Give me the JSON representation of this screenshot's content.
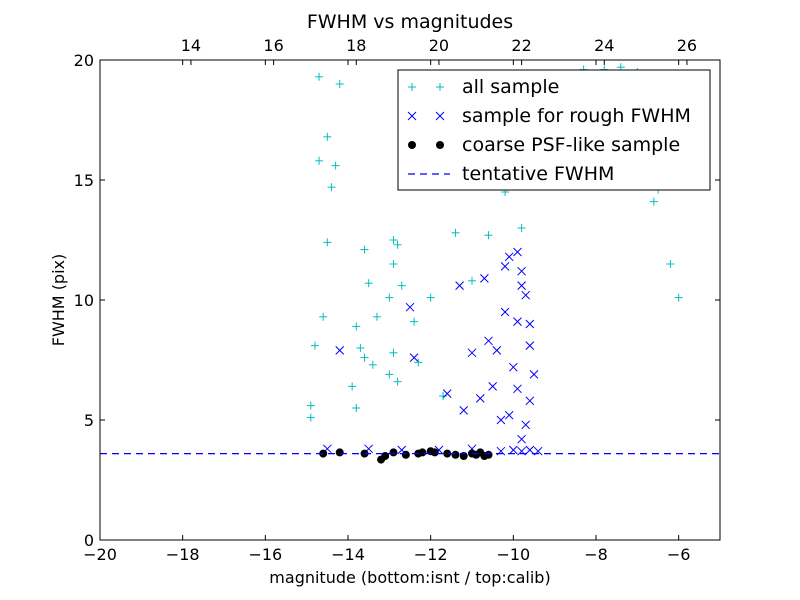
{
  "chart_data": {
    "type": "scatter",
    "title": "FWHM vs magnitudes",
    "xlabel": "magnitude (bottom:isnt / top:calib)",
    "ylabel": "FWHM (pix)",
    "xlim": [
      -20,
      -5
    ],
    "ylim": [
      0,
      20
    ],
    "x_ticks": [
      -20,
      -18,
      -16,
      -14,
      -12,
      -10,
      -8,
      -6
    ],
    "x_tick_labels": [
      "−20",
      "−18",
      "−16",
      "−14",
      "−12",
      "−10",
      "−8",
      "−6"
    ],
    "y_ticks": [
      0,
      5,
      10,
      15,
      20
    ],
    "y_tick_labels": [
      "0",
      "5",
      "10",
      "15",
      "20"
    ],
    "top_axis": {
      "ticks": [
        14,
        16,
        18,
        20,
        22,
        24,
        26
      ],
      "labels": [
        "14",
        "16",
        "18",
        "20",
        "22",
        "24",
        "26"
      ],
      "offset": 31.8
    },
    "legend_position": "upper right",
    "grid": false,
    "tentative_fwhm": 3.6,
    "series": [
      {
        "name": "all sample",
        "marker": "plus",
        "color": "#00bfbf",
        "points": [
          [
            -14.7,
            19.3
          ],
          [
            -14.2,
            19.0
          ],
          [
            -14.5,
            16.8
          ],
          [
            -14.3,
            15.6
          ],
          [
            -14.7,
            15.8
          ],
          [
            -14.4,
            14.7
          ],
          [
            -14.5,
            12.4
          ],
          [
            -13.6,
            12.1
          ],
          [
            -12.9,
            12.5
          ],
          [
            -12.8,
            12.3
          ],
          [
            -14.6,
            9.3
          ],
          [
            -14.8,
            8.1
          ],
          [
            -13.5,
            10.7
          ],
          [
            -13.3,
            9.3
          ],
          [
            -13.0,
            10.1
          ],
          [
            -12.7,
            10.6
          ],
          [
            -13.7,
            8.0
          ],
          [
            -13.8,
            8.9
          ],
          [
            -12.4,
            9.1
          ],
          [
            -12.9,
            7.8
          ],
          [
            -13.0,
            6.9
          ],
          [
            -12.8,
            6.6
          ],
          [
            -13.9,
            6.4
          ],
          [
            -13.8,
            5.5
          ],
          [
            -14.9,
            5.6
          ],
          [
            -14.9,
            5.1
          ],
          [
            -12.0,
            10.1
          ],
          [
            -11.7,
            6.0
          ],
          [
            -8.3,
            19.6
          ],
          [
            -7.8,
            19.6
          ],
          [
            -7.4,
            19.7
          ],
          [
            -7.0,
            19.5
          ],
          [
            -9.5,
            16.0
          ],
          [
            -10.5,
            15.1
          ],
          [
            -10.2,
            14.5
          ],
          [
            -6.6,
            14.1
          ],
          [
            -6.2,
            11.5
          ],
          [
            -6.0,
            10.1
          ],
          [
            -9.8,
            13.0
          ],
          [
            -11.4,
            12.8
          ],
          [
            -7.5,
            15.0
          ],
          [
            -6.5,
            14.6
          ],
          [
            -13.4,
            7.3
          ],
          [
            -13.6,
            7.6
          ],
          [
            -12.9,
            11.5
          ],
          [
            -12.3,
            7.4
          ],
          [
            -11.0,
            10.8
          ],
          [
            -10.6,
            12.7
          ]
        ]
      },
      {
        "name": "sample for rough FWHM",
        "marker": "x",
        "color": "#0000ff",
        "points": [
          [
            -14.2,
            7.9
          ],
          [
            -12.5,
            9.7
          ],
          [
            -12.4,
            7.6
          ],
          [
            -11.6,
            6.1
          ],
          [
            -11.3,
            10.6
          ],
          [
            -11.0,
            7.8
          ],
          [
            -10.7,
            10.9
          ],
          [
            -10.6,
            8.3
          ],
          [
            -10.5,
            6.4
          ],
          [
            -10.4,
            7.9
          ],
          [
            -10.2,
            9.5
          ],
          [
            -10.1,
            11.8
          ],
          [
            -9.9,
            12.0
          ],
          [
            -9.8,
            11.2
          ],
          [
            -9.7,
            10.2
          ],
          [
            -9.6,
            9.0
          ],
          [
            -9.6,
            8.1
          ],
          [
            -9.5,
            6.9
          ],
          [
            -9.9,
            9.1
          ],
          [
            -10.0,
            7.2
          ],
          [
            -10.3,
            5.0
          ],
          [
            -10.8,
            5.9
          ],
          [
            -11.2,
            5.4
          ],
          [
            -9.8,
            4.2
          ],
          [
            -9.6,
            5.8
          ],
          [
            -9.7,
            4.8
          ],
          [
            -9.9,
            6.3
          ],
          [
            -10.1,
            5.2
          ],
          [
            -10.2,
            11.4
          ],
          [
            -9.8,
            10.6
          ],
          [
            -14.5,
            3.8
          ],
          [
            -13.5,
            3.8
          ],
          [
            -12.7,
            3.75
          ],
          [
            -11.8,
            3.75
          ],
          [
            -11.0,
            3.8
          ],
          [
            -10.3,
            3.7
          ],
          [
            -10.0,
            3.75
          ],
          [
            -9.8,
            3.7
          ],
          [
            -9.6,
            3.75
          ],
          [
            -9.4,
            3.7
          ]
        ]
      },
      {
        "name": "coarse PSF-like sample",
        "marker": "circle",
        "color": "#000000",
        "points": [
          [
            -14.6,
            3.6
          ],
          [
            -14.2,
            3.65
          ],
          [
            -13.6,
            3.6
          ],
          [
            -13.2,
            3.35
          ],
          [
            -13.1,
            3.5
          ],
          [
            -12.9,
            3.65
          ],
          [
            -12.6,
            3.55
          ],
          [
            -12.3,
            3.6
          ],
          [
            -12.2,
            3.65
          ],
          [
            -12.0,
            3.7
          ],
          [
            -11.9,
            3.65
          ],
          [
            -11.6,
            3.6
          ],
          [
            -11.4,
            3.55
          ],
          [
            -11.2,
            3.5
          ],
          [
            -11.0,
            3.6
          ],
          [
            -10.9,
            3.55
          ],
          [
            -10.8,
            3.65
          ],
          [
            -10.7,
            3.5
          ],
          [
            -10.6,
            3.55
          ]
        ]
      },
      {
        "name": "tentative FWHM",
        "marker": "dashed-line",
        "color": "#0000ff",
        "points": [
          [
            -20,
            3.6
          ],
          [
            -5,
            3.6
          ]
        ]
      }
    ]
  }
}
